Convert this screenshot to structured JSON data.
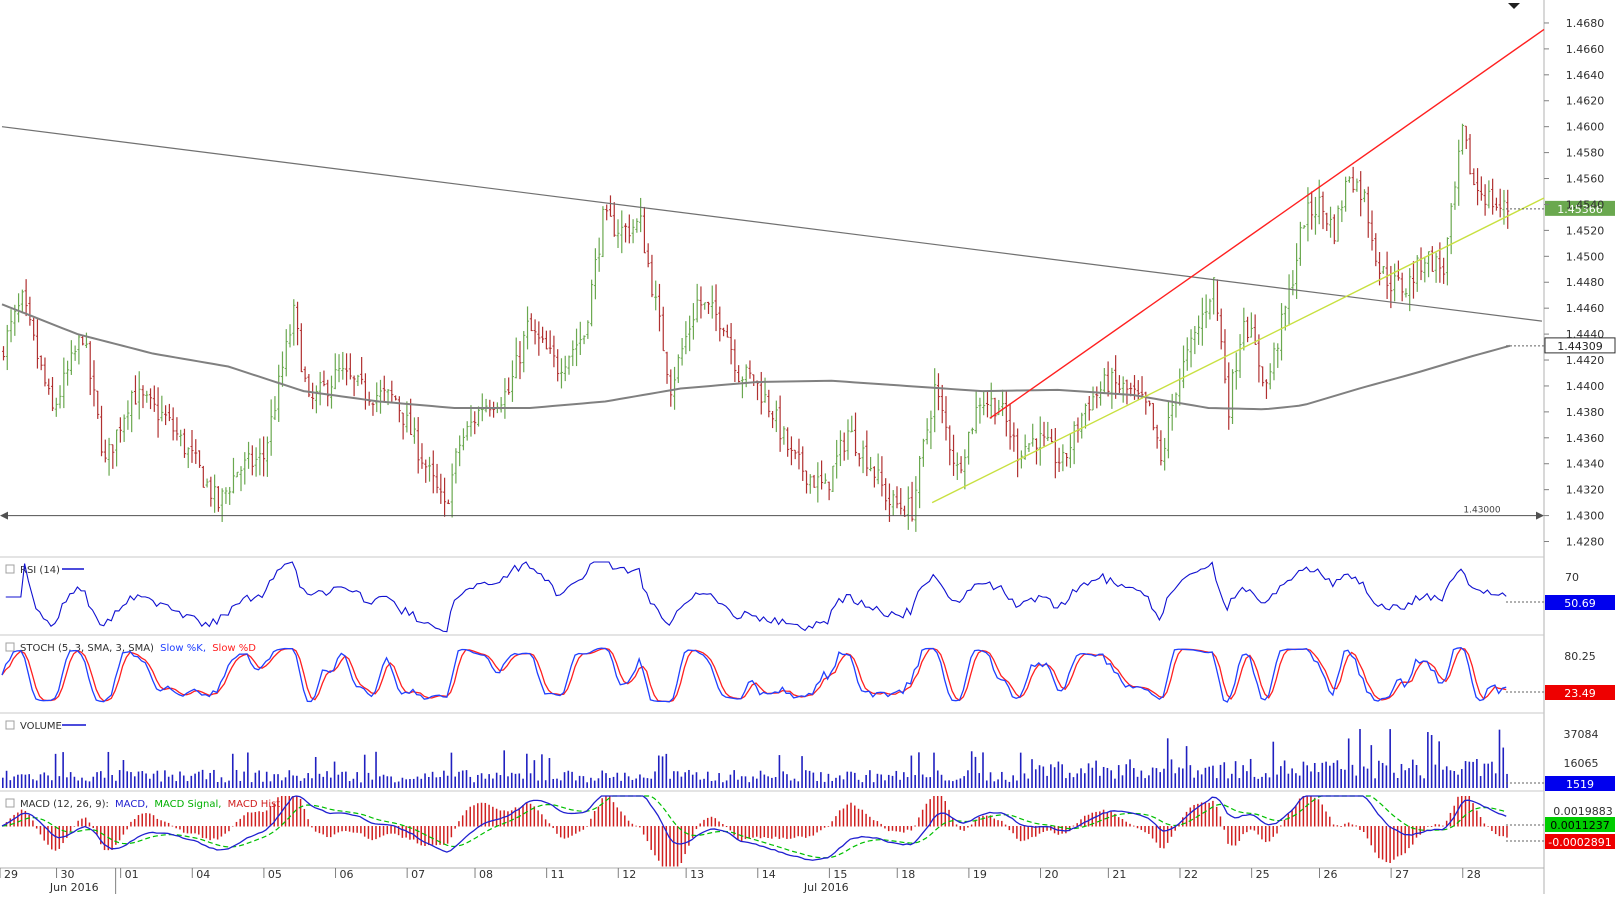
{
  "chart_data": {
    "type": "candlestick",
    "price_panel": {
      "y_ticks": [
        "1.4680",
        "1.4660",
        "1.4640",
        "1.4620",
        "1.4600",
        "1.4580",
        "1.4560",
        "1.4540",
        "1.4520",
        "1.4500",
        "1.4480",
        "1.4460",
        "1.4440",
        "1.4420",
        "1.4400",
        "1.4380",
        "1.4360",
        "1.4340",
        "1.4320",
        "1.4300",
        "1.4280"
      ],
      "ylim": [
        1.4275,
        1.469
      ],
      "current_price_label": "1.45366",
      "current_price": 1.45366,
      "ma_label": "1.44309",
      "ma_value": 1.44309,
      "support_label": "1.43000",
      "support_value": 1.43,
      "colors": {
        "up": "#6aa84f",
        "down": "#b03030",
        "ma": "#808080",
        "channel_upper": "#ff2020",
        "channel_lower": "#c8e040",
        "trendline": "#707070",
        "support": "#505050"
      },
      "channel_upper": [
        [
          262,
          1.4375
        ],
        [
          400,
          1.4663
        ]
      ],
      "channel_lower": [
        [
          256,
          1.431
        ],
        [
          400,
          1.454
        ]
      ],
      "trendline": [
        [
          0,
          1.46
        ],
        [
          400,
          1.4452
        ]
      ],
      "ma_points": [
        [
          0,
          1.4463
        ],
        [
          20,
          1.444
        ],
        [
          40,
          1.4425
        ],
        [
          60,
          1.4415
        ],
        [
          80,
          1.4396
        ],
        [
          100,
          1.4388
        ],
        [
          120,
          1.4383
        ],
        [
          140,
          1.4383
        ],
        [
          160,
          1.4388
        ],
        [
          180,
          1.4398
        ],
        [
          200,
          1.4403
        ],
        [
          220,
          1.4404
        ],
        [
          240,
          1.44
        ],
        [
          260,
          1.4396
        ],
        [
          280,
          1.4397
        ],
        [
          300,
          1.4393
        ],
        [
          320,
          1.4383
        ],
        [
          335,
          1.4382
        ],
        [
          345,
          1.4385
        ],
        [
          360,
          1.4398
        ],
        [
          375,
          1.441
        ],
        [
          390,
          1.4423
        ],
        [
          400,
          1.4431
        ]
      ],
      "anchors": [
        [
          0,
          1.4425
        ],
        [
          6,
          1.4465
        ],
        [
          14,
          1.438
        ],
        [
          22,
          1.444
        ],
        [
          28,
          1.434
        ],
        [
          35,
          1.4395
        ],
        [
          44,
          1.4375
        ],
        [
          52,
          1.434
        ],
        [
          58,
          1.4308
        ],
        [
          63,
          1.4335
        ],
        [
          70,
          1.4345
        ],
        [
          78,
          1.4455
        ],
        [
          82,
          1.4385
        ],
        [
          90,
          1.441
        ],
        [
          97,
          1.4395
        ],
        [
          105,
          1.439
        ],
        [
          112,
          1.4345
        ],
        [
          118,
          1.4305
        ],
        [
          122,
          1.4355
        ],
        [
          128,
          1.4385
        ],
        [
          135,
          1.4395
        ],
        [
          140,
          1.4445
        ],
        [
          148,
          1.4415
        ],
        [
          155,
          1.444
        ],
        [
          160,
          1.4528
        ],
        [
          165,
          1.452
        ],
        [
          170,
          1.4525
        ],
        [
          178,
          1.44
        ],
        [
          185,
          1.4465
        ],
        [
          192,
          1.445
        ],
        [
          196,
          1.441
        ],
        [
          200,
          1.4405
        ],
        [
          205,
          1.438
        ],
        [
          210,
          1.4345
        ],
        [
          215,
          1.433
        ],
        [
          219,
          1.432
        ],
        [
          225,
          1.4365
        ],
        [
          230,
          1.4345
        ],
        [
          236,
          1.431
        ],
        [
          242,
          1.4305
        ],
        [
          248,
          1.4398
        ],
        [
          254,
          1.4335
        ],
        [
          260,
          1.439
        ],
        [
          265,
          1.4385
        ],
        [
          270,
          1.435
        ],
        [
          275,
          1.436
        ],
        [
          282,
          1.434
        ],
        [
          288,
          1.4385
        ],
        [
          294,
          1.4403
        ],
        [
          300,
          1.4395
        ],
        [
          305,
          1.438
        ],
        [
          308,
          1.434
        ],
        [
          312,
          1.44
        ],
        [
          318,
          1.4445
        ],
        [
          322,
          1.448
        ],
        [
          326,
          1.4385
        ],
        [
          330,
          1.4455
        ],
        [
          336,
          1.44
        ],
        [
          342,
          1.447
        ],
        [
          346,
          1.453
        ],
        [
          350,
          1.454
        ],
        [
          354,
          1.452
        ],
        [
          358,
          1.4565
        ],
        [
          362,
          1.4545
        ],
        [
          366,
          1.449
        ],
        [
          369,
          1.448
        ],
        [
          373,
          1.4475
        ],
        [
          378,
          1.45
        ],
        [
          383,
          1.449
        ],
        [
          386,
          1.455
        ],
        [
          388,
          1.4595
        ],
        [
          391,
          1.4555
        ],
        [
          395,
          1.4545
        ],
        [
          398,
          1.4537
        ]
      ],
      "date_labels": [
        {
          "label": "29",
          "pos": 0
        },
        {
          "label": "30",
          "pos": 15
        },
        {
          "label": "01",
          "pos": 32
        },
        {
          "label": "04",
          "pos": 51
        },
        {
          "label": "05",
          "pos": 70
        },
        {
          "label": "06",
          "pos": 89
        },
        {
          "label": "07",
          "pos": 108
        },
        {
          "label": "08",
          "pos": 126
        },
        {
          "label": "11",
          "pos": 145
        },
        {
          "label": "12",
          "pos": 164
        },
        {
          "label": "13",
          "pos": 182
        },
        {
          "label": "14",
          "pos": 201
        },
        {
          "label": "15",
          "pos": 220
        },
        {
          "label": "18",
          "pos": 238
        },
        {
          "label": "19",
          "pos": 257
        },
        {
          "label": "20",
          "pos": 276
        },
        {
          "label": "21",
          "pos": 294
        },
        {
          "label": "22",
          "pos": 313
        },
        {
          "label": "25",
          "pos": 332
        },
        {
          "label": "26",
          "pos": 350
        },
        {
          "label": "27",
          "pos": 369
        },
        {
          "label": "28",
          "pos": 388
        }
      ],
      "month_labels": [
        {
          "label": "Jun 2016",
          "pos": 9
        },
        {
          "label": "Jul 2016",
          "pos": 209
        }
      ]
    },
    "rsi_panel": {
      "title": "RSI (14)",
      "y_ticks": [
        "70"
      ],
      "ylim": [
        20,
        80
      ],
      "current_label": "50.69",
      "current_value": 50.69,
      "line_color": "#1010d0"
    },
    "stoch_panel": {
      "title": "STOCH (5, 3, SMA, 3, SMA)",
      "legend_k": "Slow %K,",
      "legend_d": "Slow %D",
      "y_ticks": [
        "80.25"
      ],
      "ylim": [
        0,
        100
      ],
      "current_label": "23.49",
      "current_value": 23.49,
      "k_color": "#2040ff",
      "d_color": "#ff2020"
    },
    "volume_panel": {
      "title": "VOLUME",
      "y_ticks": [
        "37084",
        "16065"
      ],
      "ylim": [
        0,
        50000
      ],
      "current_label": "1519",
      "current_value": 1519,
      "bar_color": "#2020c0"
    },
    "macd_panel": {
      "title": "MACD (12, 26, 9):",
      "legend_macd": "MACD,",
      "legend_signal": "MACD Signal,",
      "legend_hist": "MACD Hist",
      "y_ticks": [
        "0.0019883"
      ],
      "ylim": [
        -0.0032,
        0.0024
      ],
      "current_macd_label": "0.0011237",
      "current_macd": 0.0011237,
      "current_signal_label": "-0.0002891",
      "current_signal": -0.0002891,
      "macd_color": "#2020d0",
      "signal_color": "#00c000",
      "hist_color": "#d02020"
    }
  }
}
